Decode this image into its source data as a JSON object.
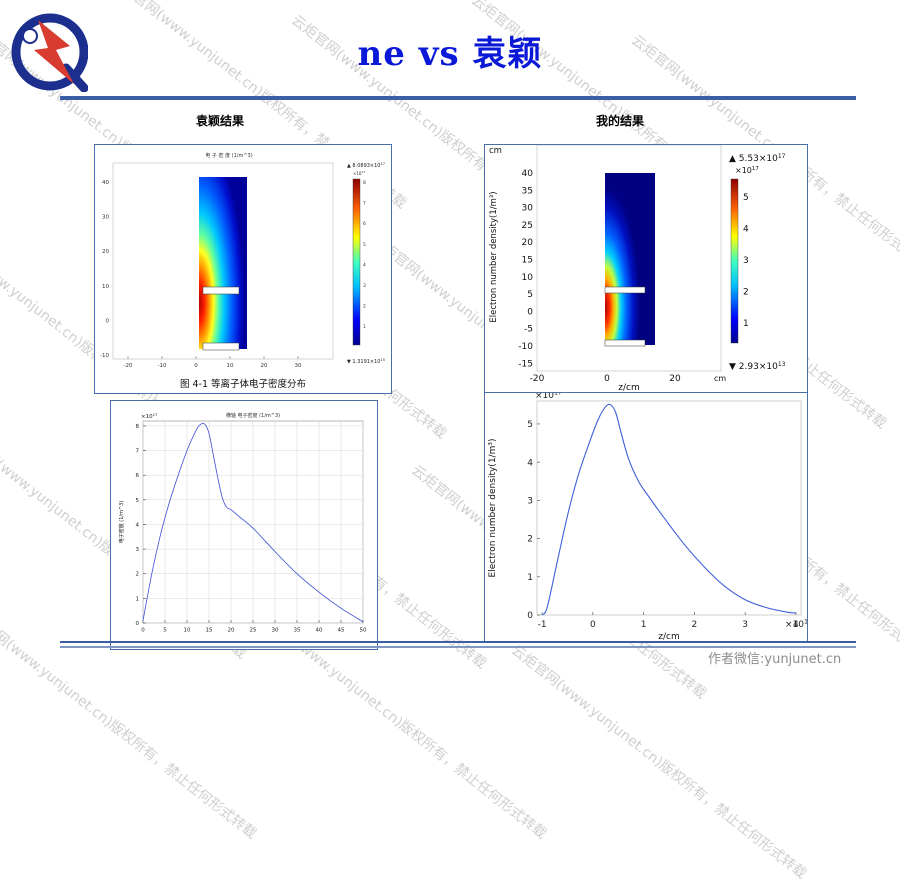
{
  "slide": {
    "title": "ne vs 袁颖",
    "left_heading": "袁颖结果",
    "right_heading": "我的结果",
    "figure_caption": "图 4-1   等离子体电子密度分布",
    "footer": "作者微信:yunjunet.cn",
    "watermark": "云炬官网(www.yunjunet.cn)版权所有，禁止任何形式转载"
  },
  "left_contour": {
    "title": "电 子 密 度 (1/m^3)",
    "colorbar_max": "▲ 8.0893×10",
    "colorbar_max_exp": "17",
    "colorbar_scale": "×10",
    "colorbar_scale_exp": "17",
    "colorbar_min": "▼ 1.3191×10",
    "colorbar_min_exp": "15",
    "colorbar_ticks": [
      "8",
      "7",
      "6",
      "5",
      "4",
      "3",
      "2",
      "1"
    ],
    "x_ticks": [
      "-20",
      "-10",
      "0",
      "10",
      "20",
      "30"
    ],
    "y_ticks": [
      "40",
      "30",
      "20",
      "10",
      "0",
      "-10"
    ]
  },
  "right_contour": {
    "unit_label": "cm",
    "y_axis_label": "Electron number density(1/m³)",
    "x_axis_label": "z/cm",
    "x_unit": "cm",
    "colorbar_max": "▲ 5.53×10",
    "colorbar_max_exp": "17",
    "colorbar_scale": "×10",
    "colorbar_scale_exp": "17",
    "colorbar_min": "▼ 2.93×10",
    "colorbar_min_exp": "13",
    "colorbar_ticks": [
      "5",
      "4",
      "3",
      "2",
      "1"
    ],
    "x_ticks": [
      "-20",
      "0",
      "20"
    ],
    "y_ticks": [
      "40",
      "35",
      "30",
      "25",
      "20",
      "15",
      "10",
      "5",
      "0",
      "-5",
      "-10",
      "-15"
    ]
  },
  "chart_data": [
    {
      "type": "line",
      "title": "横轴 电子密度 (1/m^3)",
      "xlabel": "",
      "ylabel": "电子密度 (1/m^3)",
      "y_multiplier": "×10",
      "y_multiplier_exp": "17",
      "xlim": [
        0,
        50
      ],
      "ylim": [
        0,
        8.2
      ],
      "x_ticks": [
        "0",
        "5",
        "10",
        "15",
        "20",
        "25",
        "30",
        "35",
        "40",
        "45",
        "50"
      ],
      "y_ticks": [
        "0",
        "1",
        "2",
        "3",
        "4",
        "5",
        "6",
        "7",
        "8"
      ],
      "grid": true,
      "series": [
        {
          "x": [
            0,
            2,
            4,
            6,
            8,
            10,
            12,
            13,
            14,
            15,
            16,
            17,
            18,
            19,
            20,
            22,
            25,
            30,
            35,
            40,
            45,
            50
          ],
          "y": [
            0.1,
            2.0,
            3.6,
            4.9,
            6.0,
            7.0,
            7.8,
            8.05,
            8.08,
            7.7,
            6.8,
            5.9,
            5.1,
            4.7,
            4.6,
            4.3,
            3.85,
            2.9,
            2.0,
            1.25,
            0.6,
            0.05
          ]
        }
      ]
    },
    {
      "type": "line",
      "title": "",
      "xlabel": "z/cm",
      "ylabel": "Electron number density(1/m³)",
      "y_multiplier": "×10",
      "y_multiplier_exp": "17",
      "x_multiplier": "×10",
      "x_multiplier_exp": "1",
      "xlim": [
        -1.1,
        4.1
      ],
      "ylim": [
        0,
        5.6
      ],
      "x_ticks": [
        "-1",
        "0",
        "1",
        "2",
        "3",
        "4"
      ],
      "y_ticks": [
        "0",
        "1",
        "2",
        "3",
        "4",
        "5"
      ],
      "grid": false,
      "series": [
        {
          "x": [
            -1.0,
            -0.9,
            -0.7,
            -0.5,
            -0.3,
            -0.1,
            0.1,
            0.25,
            0.35,
            0.45,
            0.55,
            0.7,
            0.9,
            1.1,
            1.4,
            1.8,
            2.2,
            2.6,
            3.0,
            3.4,
            3.8,
            4.0
          ],
          "y": [
            0.0,
            0.2,
            1.4,
            2.6,
            3.6,
            4.4,
            5.1,
            5.45,
            5.5,
            5.3,
            4.8,
            4.1,
            3.5,
            3.1,
            2.55,
            1.85,
            1.25,
            0.75,
            0.4,
            0.2,
            0.08,
            0.05
          ]
        }
      ]
    }
  ]
}
